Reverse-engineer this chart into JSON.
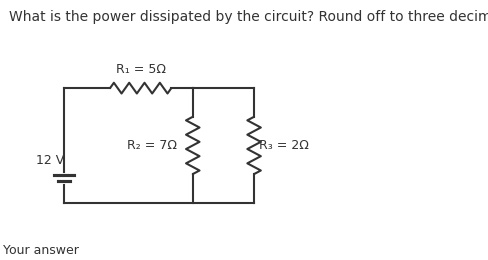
{
  "title": "What is the power dissipated by the circuit? Round off to three decimal places.",
  "title_fontsize": 10,
  "your_answer_label": "Your answer",
  "r1_label": "R₁ = 5Ω",
  "r2_label": "R₂ = 7Ω",
  "r3_label": "R₃ = 2Ω",
  "v_label": "12 V",
  "bg_color": "#ffffff",
  "line_color": "#333333",
  "text_color": "#333333"
}
